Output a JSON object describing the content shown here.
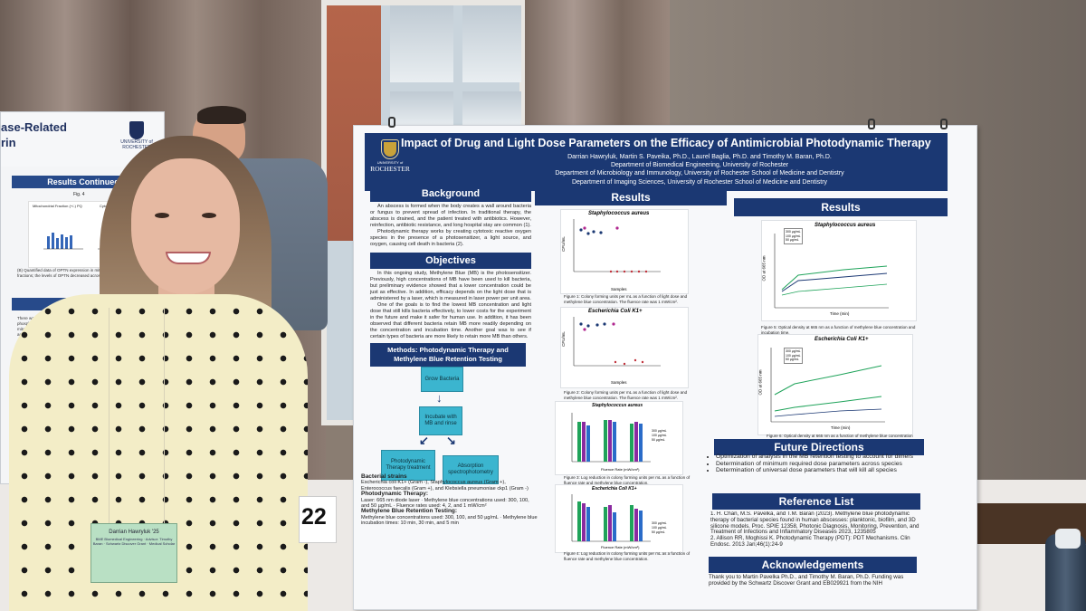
{
  "scene": {
    "table_number": "22",
    "name_badge": {
      "name": "Darrian Hawryluk '25",
      "details": "BME Biomedical Engineering · Advisor: Timothy Baran · Schwartz Discover Grant · Medical Scholar"
    },
    "left_poster": {
      "title_lines": [
        "ase-Related",
        "rin"
      ],
      "logo_text": "UNIVERSITY of ROCHESTER",
      "section_1": "Results Continued",
      "section_2": "Conclusion",
      "figure_label": "Fig. 4",
      "figure_titles": [
        "Mitochondrial Fraction (+/-) PQ",
        "Cytosolic Fractio"
      ]
    }
  },
  "poster": {
    "title": "Impact of Drug and Light Dose Parameters on the Efficacy of Antimicrobial Photodynamic Therapy",
    "authors": "Darrian Hawryluk, Martin S. Paveika, Ph.D., Laurel Baglia, Ph.D. and Timothy M. Baran, Ph.D.",
    "affiliation_1": "Department of Biomedical Engineering, University of Rochester",
    "affiliation_2": "Department of Microbiology and Immunology, University of Rochester School of Medicine and Dentistry",
    "affiliation_3": "Department of Imaging Sciences, University of Rochester School of Medicine and Dentistry",
    "logo_small": "UNIVERSITY of",
    "logo_big": "ROCHESTER",
    "background_heading": "Background",
    "background_text_1": "An abscess is formed when the body creates a wall around bacteria or fungus to prevent spread of infection. In traditional therapy, the abscess is drained, and the patient treated with antibiotics. However, reinfection, antibiotic resistance, and long hospital stay are common (1).",
    "background_text_2": "Photodynamic therapy works by creating cytotoxic reactive oxygen species in the presence of a photosensitizer, a light source, and oxygen, causing cell death in bacteria (2).",
    "objectives_heading": "Objectives",
    "objectives_text_1": "In this ongoing study, Methylene Blue (MB) is the photosensitizer. Previously, high concentrations of MB have been used to kill bacteria, but preliminary evidence showed that a lower concentration could be just as effective. In addition, efficacy depends on the light dose that is administered by a laser, which is measured in laser power per unit area.",
    "objectives_text_2": "One of the goals is to find the lowest MB concentration and light dose that still kills bacteria effectively, to lower costs for the experiment in the future and make it safer for human use. In addition, it has been observed that different bacteria retain MB more readily depending on the concentration and incubation time. Another goal was to see if certain types of bacteria are more likely to retain more MB than others.",
    "methods_heading": "Methods: Photodynamic Therapy and Methylene Blue Retention Testing",
    "flow": {
      "step_1": "Grow Bacteria",
      "step_2": "Incubate with MB and rinse",
      "step_3a": "Photodynamic Therapy treatment",
      "step_3b": "Absorption spectrophotometry"
    },
    "strains_heading": "Bacterial strains",
    "strains_text": "Escherichia coli K1+ (Gram -), Staphylococcus aureus (Gram +), Enterococcus faecalis (Gram +), and Klebsiella pneumoniae ckp1 (Gram -)",
    "pdt_heading": "Photodynamic Therapy:",
    "pdt_text": "Laser: 665 nm diode laser · Methylene blue concentrations used: 300, 100, and 50 µg/mL · Fluence rates used: 4, 2, and 1 mW/cm²",
    "retention_heading": "Methylene Blue Retention Testing:",
    "retention_text": "Methylene blue concentrations used: 300, 100, and 50 µg/mL · Methylene blue incubation times: 10 min, 30 min, and 5 min",
    "results_heading": "Results",
    "results_middle": {
      "fig1_title": "Staphylococcus aureus",
      "fig1_ylabel": "CFU/mL",
      "fig1_xlabel": "Samples",
      "fig1_caption": "Figure 1: Colony forming units per mL as a function of light dose and methylene blue concentration. The fluence rate was 1 mW/cm².",
      "fig2_title": "Escherichia Coli K1+",
      "fig2_ylabel": "CFU/mL",
      "fig2_xlabel": "Samples",
      "fig2_caption": "Figure 2: Colony forming units per mL as a function of light dose and methylene blue concentration. The fluence rate was 1 mW/cm².",
      "fig3_title": "Staphylococcus aureus",
      "fig3_xlabel": "Fluence Rate (mW/cm²)",
      "fig3_caption": "Figure 3: Log reduction in colony forming units per mL as a function of fluence rate and methylene blue concentration.",
      "fig4_title": "Escherichia Coli K1+",
      "fig4_xlabel": "Fluence Rate (mW/cm²)",
      "fig4_caption": "Figure 4: Log reduction in colony forming units per mL as a function of fluence rate and methylene blue concentration.",
      "legend": [
        "300 µg/mL",
        "100 µg/mL",
        "50 µg/mL"
      ]
    },
    "results_right": {
      "fig5_title": "Staphylococcus aureus",
      "fig5_ylabel": "OD at 665 nm",
      "fig5_xlabel": "Time (min)",
      "fig5_caption": "Figure 5: Optical density at 665 nm as a function of methylene blue concentration and incubation time.",
      "fig6_title": "Escherichia Coli K1+",
      "fig6_ylabel": "OD at 665 nm",
      "fig6_xlabel": "Time (min)",
      "fig6_caption": "Figure 6: Optical density at 665 nm as a function of methylene blue concentration and incubation time.",
      "legend": [
        "300 µg/mL",
        "100 µg/mL",
        "50 µg/mL"
      ]
    },
    "future_heading": "Future Directions",
    "future_items": [
      "Optimization of analysis in the MB retention testing to account for dimers",
      "Determination of minimum required dose parameters across species",
      "Determination of universal dose parameters that will kill all species"
    ],
    "reference_heading": "Reference List",
    "references": [
      "1. H. Chan, M.S. Pavelka, and T.M. Baran (2023). Methylene blue photodynamic therapy of bacterial species found in human abscesses: planktonic, biofilm, and 3D silicone models. Proc. SPIE 12358, Photonic Diagnosis, Monitoring, Prevention, and Treatment of Infections and Inflammatory Diseases 2023, 1235805",
      "2. Allison RR, Moghissi K. Photodynamic Therapy (PDT): PDT Mechanisms. Clin Endosc. 2013 Jan;46(1):24-9"
    ],
    "ack_heading": "Acknowledgements",
    "ack_text": "Thank you to Martin Pavelka Ph.D., and Timothy M. Baran, Ph.D. Funding was provided by the Schwartz Discover Grant and EB029921 from the NIH"
  },
  "colors": {
    "poster_navy": "#1b3873",
    "flow_box": "#3bb5cf",
    "bar_green": "#1fa35a",
    "bar_purple": "#8a2aa0",
    "bar_blue": "#2a6cc9"
  }
}
